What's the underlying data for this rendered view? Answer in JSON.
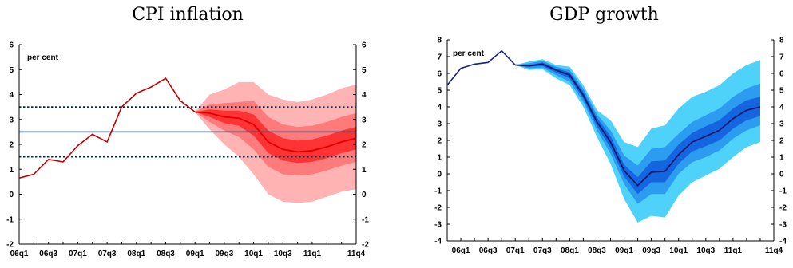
{
  "chart_data": [
    {
      "type": "line",
      "title": "CPI inflation",
      "unit_label": "per cent",
      "ylim": [
        -2,
        6
      ],
      "yticks": [
        "-2",
        "-1",
        "0",
        "1",
        "2",
        "3",
        "4",
        "5",
        "6"
      ],
      "xtick_labels": [
        "06q1",
        "06q3",
        "07q1",
        "07q3",
        "08q1",
        "08q3",
        "09q1",
        "09q3",
        "10q1",
        "10q3",
        "11q1",
        "11q4"
      ],
      "quarters": [
        "06q1",
        "06q2",
        "06q3",
        "06q4",
        "07q1",
        "07q2",
        "07q3",
        "07q4",
        "08q1",
        "08q2",
        "08q3",
        "08q4",
        "09q1",
        "09q2",
        "09q3",
        "09q4",
        "10q1",
        "10q2",
        "10q3",
        "10q4",
        "11q1",
        "11q2",
        "11q3",
        "11q4"
      ],
      "history": [
        0.65,
        0.8,
        1.4,
        1.3,
        1.95,
        2.4,
        2.1,
        3.5,
        4.05,
        4.3,
        4.65,
        3.75,
        3.3
      ],
      "central": [
        3.3,
        3.25,
        3.1,
        3.05,
        2.8,
        2.1,
        1.8,
        1.7,
        1.75,
        1.9,
        2.1,
        2.25
      ],
      "fan_bands": {
        "outer_lower": [
          3.3,
          2.6,
          2.0,
          1.5,
          0.8,
          0.0,
          -0.3,
          -0.35,
          -0.3,
          -0.1,
          0.1,
          0.2
        ],
        "outer_upper": [
          3.3,
          4.0,
          4.2,
          4.5,
          4.5,
          4.0,
          3.8,
          3.7,
          3.8,
          4.0,
          4.25,
          4.4
        ],
        "mid_lower": [
          3.3,
          2.9,
          2.55,
          2.3,
          1.8,
          1.1,
          0.8,
          0.75,
          0.8,
          0.95,
          1.15,
          1.3
        ],
        "mid_upper": [
          3.3,
          3.6,
          3.65,
          3.7,
          3.75,
          3.1,
          2.8,
          2.7,
          2.75,
          2.9,
          3.1,
          3.25
        ],
        "inner_lower": [
          3.3,
          3.1,
          2.85,
          2.75,
          2.35,
          1.65,
          1.35,
          1.25,
          1.3,
          1.45,
          1.65,
          1.8
        ],
        "inner_upper": [
          3.3,
          3.4,
          3.35,
          3.35,
          3.2,
          2.55,
          2.25,
          2.15,
          2.2,
          2.35,
          2.55,
          2.7
        ]
      },
      "reference_lines": [
        {
          "value": 2.5,
          "style": "solid",
          "color": "#1f4e79"
        },
        {
          "value": 3.5,
          "style": "dotted",
          "color": "#0d2a4a"
        },
        {
          "value": 1.5,
          "style": "dotted",
          "color": "#0d2a4a"
        }
      ],
      "colors": {
        "history": "#c00000",
        "central": "#e00000",
        "outer": "#ffb3b3",
        "mid": "#ff7a7a",
        "inner": "#ff3333"
      }
    },
    {
      "type": "line",
      "title": "GDP growth",
      "unit_label": "per cent",
      "ylim": [
        -4,
        8
      ],
      "yticks": [
        "-4",
        "-3",
        "-2",
        "-1",
        "0",
        "1",
        "2",
        "3",
        "4",
        "5",
        "6",
        "7",
        "8"
      ],
      "xtick_labels": [
        "06q1",
        "06q3",
        "07q1",
        "07q3",
        "08q1",
        "08q3",
        "09q1",
        "09q3",
        "10q1",
        "10q3",
        "11q1",
        "11q4"
      ],
      "quarters": [
        "05q4",
        "06q1",
        "06q2",
        "06q3",
        "06q4",
        "07q1",
        "07q2",
        "07q3",
        "07q4",
        "08q1",
        "08q2",
        "08q3",
        "08q4",
        "09q1",
        "09q2",
        "09q3",
        "09q4",
        "10q1",
        "10q2",
        "10q3",
        "10q4",
        "11q1",
        "11q2",
        "11q3",
        "11q4"
      ],
      "history": [
        5.3,
        6.3,
        6.55,
        6.65,
        7.35,
        6.5
      ],
      "central": [
        6.5,
        6.45,
        6.55,
        6.2,
        5.9,
        4.7,
        3.1,
        1.9,
        0.2,
        -0.7,
        0.1,
        0.15,
        1.15,
        1.9,
        2.25,
        2.6,
        3.3,
        3.8,
        4.0
      ],
      "fan_bands": {
        "outer_lower": [
          6.5,
          6.2,
          6.25,
          5.7,
          5.3,
          4.0,
          2.2,
          0.6,
          -1.5,
          -2.9,
          -2.5,
          -2.6,
          -1.3,
          -0.5,
          -0.1,
          0.3,
          1.0,
          1.6,
          1.9
        ],
        "outer_upper": [
          6.5,
          6.7,
          6.85,
          6.5,
          6.4,
          5.3,
          3.8,
          3.2,
          1.9,
          1.6,
          2.7,
          2.9,
          3.9,
          4.6,
          4.9,
          5.3,
          6.0,
          6.5,
          6.8
        ],
        "mid_lower": [
          6.5,
          6.3,
          6.35,
          5.9,
          5.5,
          4.3,
          2.6,
          1.2,
          -0.6,
          -1.8,
          -1.2,
          -1.2,
          0.0,
          0.7,
          1.0,
          1.4,
          2.1,
          2.6,
          2.9
        ],
        "mid_upper": [
          6.5,
          6.6,
          6.75,
          6.4,
          6.2,
          5.1,
          3.55,
          2.6,
          1.1,
          0.5,
          1.5,
          1.6,
          2.4,
          3.1,
          3.5,
          3.9,
          4.6,
          5.1,
          5.4
        ],
        "inner_lower": [
          6.5,
          6.4,
          6.45,
          6.05,
          5.7,
          4.5,
          2.85,
          1.55,
          -0.15,
          -1.2,
          -0.5,
          -0.5,
          0.6,
          1.35,
          1.65,
          2.0,
          2.7,
          3.2,
          3.45
        ],
        "inner_upper": [
          6.5,
          6.5,
          6.65,
          6.3,
          6.05,
          4.9,
          3.35,
          2.25,
          0.55,
          -0.2,
          0.75,
          0.8,
          1.75,
          2.45,
          2.85,
          3.2,
          3.9,
          4.4,
          4.6
        ]
      },
      "reference_lines": [],
      "colors": {
        "history": "#1a237e",
        "central": "#0d1b6e",
        "outer": "#4fd2fa",
        "mid": "#2b9cf0",
        "inner": "#1565e0"
      }
    }
  ]
}
